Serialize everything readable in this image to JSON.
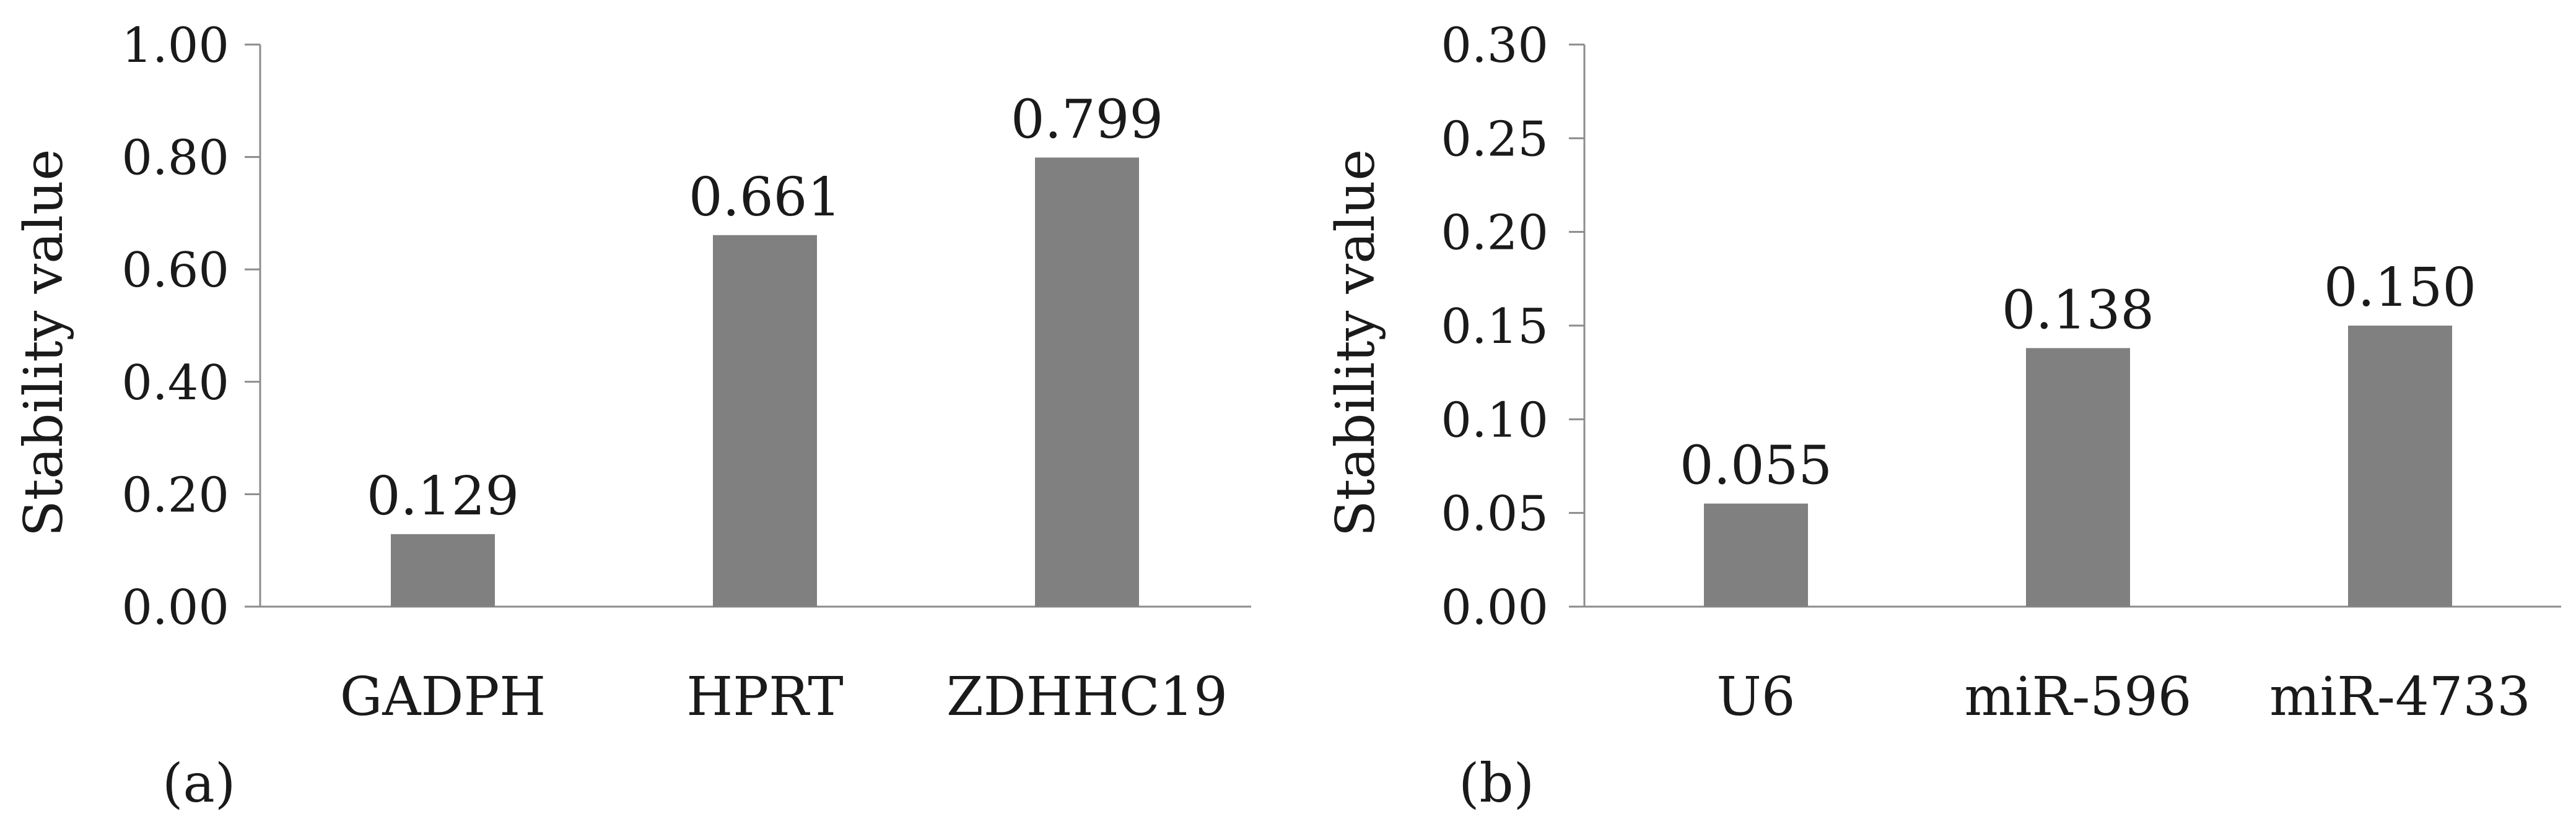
{
  "chart_data": [
    {
      "type": "bar",
      "panel_label": "(a)",
      "ylabel": "Stability value",
      "categories": [
        "GADPH",
        "HPRT",
        "ZDHHC19"
      ],
      "values": [
        0.129,
        0.661,
        0.799
      ],
      "data_labels": [
        "0.129",
        "0.661",
        "0.799"
      ],
      "ylim": [
        0,
        1.0
      ],
      "yticks": [
        "0.00",
        "0.20",
        "0.40",
        "0.60",
        "0.80",
        "1.00"
      ],
      "grid": false,
      "bar_color": "#808080"
    },
    {
      "type": "bar",
      "panel_label": "(b)",
      "ylabel": "Stability value",
      "categories": [
        "U6",
        "miR-596",
        "miR-4733"
      ],
      "values": [
        0.055,
        0.138,
        0.15
      ],
      "data_labels": [
        "0.055",
        "0.138",
        "0.150"
      ],
      "ylim": [
        0,
        0.3
      ],
      "yticks": [
        "0.00",
        "0.05",
        "0.10",
        "0.15",
        "0.20",
        "0.25",
        "0.30"
      ],
      "grid": false,
      "bar_color": "#808080"
    }
  ]
}
